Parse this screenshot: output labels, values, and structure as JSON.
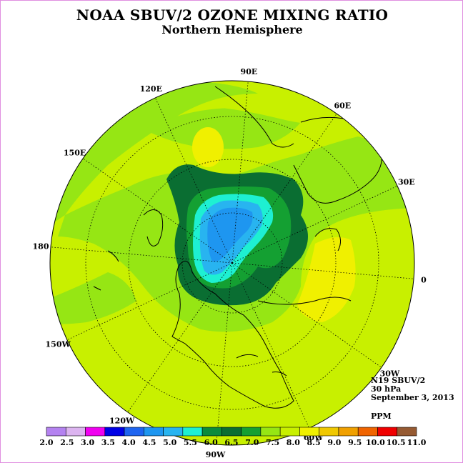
{
  "title": "NOAA SBUV/2 OZONE MIXING RATIO",
  "subtitle": "Northern Hemisphere",
  "longitude_labels": [
    {
      "text": "90E",
      "lon": 90
    },
    {
      "text": "60E",
      "lon": 60
    },
    {
      "text": "30E",
      "lon": 30
    },
    {
      "text": "0",
      "lon": 0
    },
    {
      "text": "30W",
      "lon": -30
    },
    {
      "text": "60W",
      "lon": -60
    },
    {
      "text": "90W",
      "lon": -90
    },
    {
      "text": "120W",
      "lon": -120
    },
    {
      "text": "150W",
      "lon": -150
    },
    {
      "text": "180",
      "lon": 180
    },
    {
      "text": "150E",
      "lon": 150
    },
    {
      "text": "120E",
      "lon": 120
    }
  ],
  "info": {
    "instrument": "N19 SBUV/2",
    "level": "30 hPa",
    "date": "September 3, 2013"
  },
  "units": "PPM",
  "colorbar": {
    "ticks": [
      "2.0",
      "2.5",
      "3.0",
      "3.5",
      "4.0",
      "4.5",
      "5.0",
      "5.5",
      "6.0",
      "6.5",
      "7.0",
      "7.5",
      "8.0",
      "8.5",
      "9.0",
      "9.5",
      "10.0",
      "10.5",
      "11.0"
    ],
    "colors": [
      "#b482f0",
      "#dcb4f0",
      "#f000f0",
      "#0000e6",
      "#1e64f0",
      "#1e96f0",
      "#28b4f0",
      "#1ef0d2",
      "#0a8c3c",
      "#0a6e32",
      "#14a032",
      "#96e614",
      "#c8f000",
      "#f0f000",
      "#f0c800",
      "#f0a000",
      "#f06400",
      "#f00000",
      "#965a32"
    ]
  }
}
